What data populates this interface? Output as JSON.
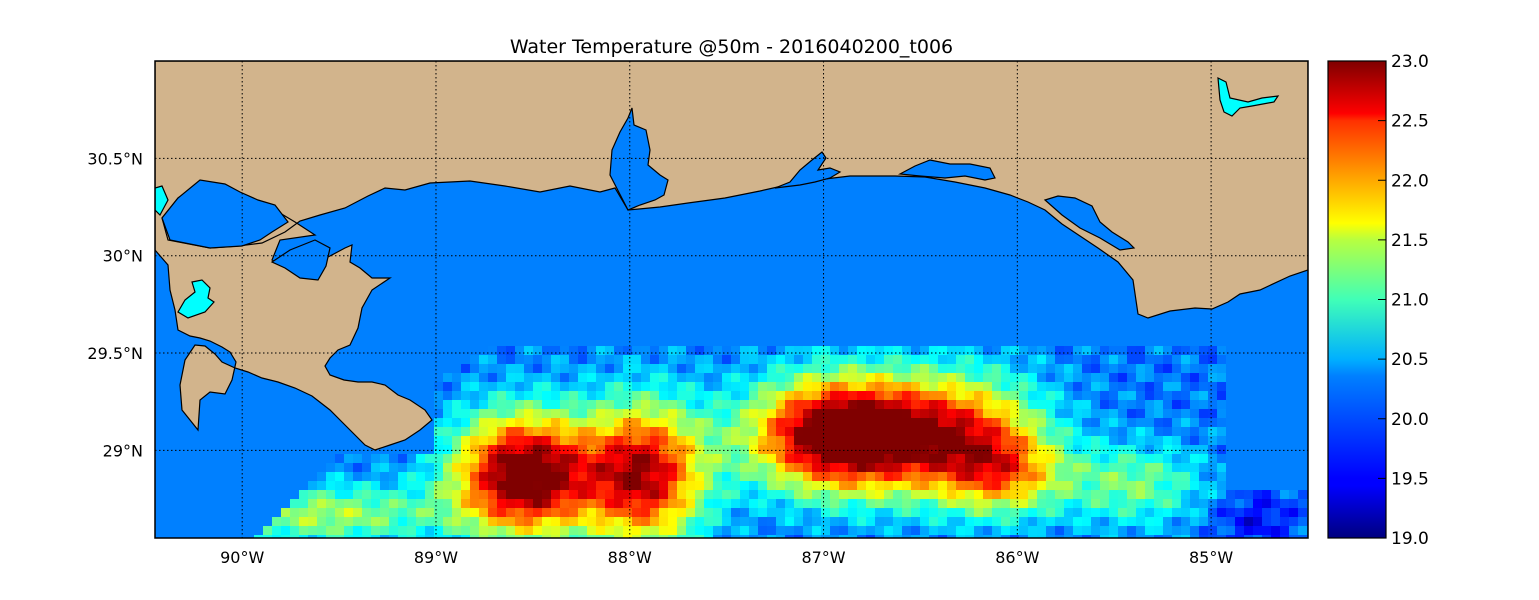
{
  "title": "Water Temperature @50m - 2016040200_t006",
  "colors": {
    "land": "#d2b48c",
    "ocean": "#0080ff",
    "lake": "#00ffff",
    "outline": "#000000"
  },
  "map": {
    "lon_range": [
      -90.45,
      -84.5
    ],
    "lat_range": [
      28.55,
      31.0
    ],
    "x_ticks": [
      {
        "value": -90,
        "label": "90°W"
      },
      {
        "value": -89,
        "label": "89°W"
      },
      {
        "value": -88,
        "label": "88°W"
      },
      {
        "value": -87,
        "label": "87°W"
      },
      {
        "value": -86,
        "label": "86°W"
      },
      {
        "value": -85,
        "label": "85°W"
      }
    ],
    "y_ticks": [
      {
        "value": 30.5,
        "label": "30.5°N"
      },
      {
        "value": 30.0,
        "label": "30°N"
      },
      {
        "value": 29.5,
        "label": "29.5°N"
      },
      {
        "value": 29.0,
        "label": "29°N"
      }
    ],
    "grid": true
  },
  "colorbar": {
    "colormap": "jet",
    "range": [
      19.0,
      23.0
    ],
    "ticks": [
      "19.0",
      "19.5",
      "20.0",
      "20.5",
      "21.0",
      "21.5",
      "22.0",
      "22.5",
      "23.0"
    ]
  }
}
